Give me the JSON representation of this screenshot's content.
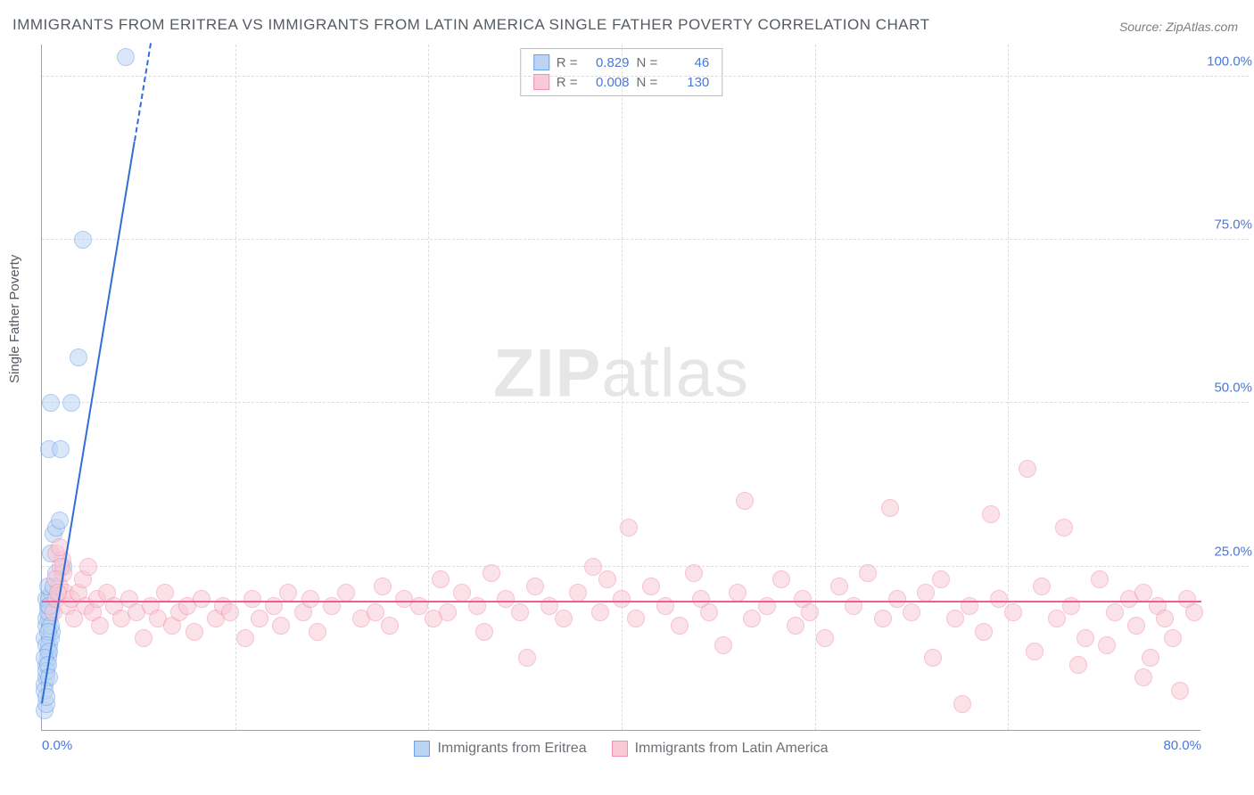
{
  "title": "IMMIGRANTS FROM ERITREA VS IMMIGRANTS FROM LATIN AMERICA SINGLE FATHER POVERTY CORRELATION CHART",
  "source": "Source: ZipAtlas.com",
  "y_axis_label": "Single Father Poverty",
  "watermark": {
    "bold": "ZIP",
    "rest": "atlas"
  },
  "chart": {
    "type": "scatter",
    "xlim": [
      0,
      80
    ],
    "ylim": [
      0,
      105
    ],
    "x_ticks": [
      0,
      13.33,
      26.67,
      40,
      53.33,
      66.67,
      80
    ],
    "x_tick_labels": [
      "0.0%",
      "",
      "",
      "",
      "",
      "",
      "80.0%"
    ],
    "y_ticks": [
      25,
      50,
      75,
      100
    ],
    "y_tick_labels": [
      "25.0%",
      "50.0%",
      "75.0%",
      "100.0%"
    ],
    "background_color": "#ffffff",
    "grid_color": "#d9dce0",
    "axis_color": "#9aa0a6",
    "tick_label_color": "#4978d6",
    "marker_radius": 10,
    "marker_stroke_width": 1.5,
    "series": [
      {
        "name": "Immigrants from Eritrea",
        "fill": "#bcd4f4",
        "stroke": "#6ea2e8",
        "fill_opacity": 0.55,
        "R": "0.829",
        "N": "46",
        "trend": {
          "x1": 0,
          "y1": 4,
          "x2": 7.5,
          "y2": 105,
          "color": "#2f6fd6",
          "width": 2,
          "dash_after_y": 90
        },
        "points": [
          [
            0.2,
            3
          ],
          [
            0.3,
            4
          ],
          [
            0.2,
            7
          ],
          [
            0.3,
            8
          ],
          [
            0.4,
            12
          ],
          [
            0.2,
            14
          ],
          [
            0.3,
            16
          ],
          [
            0.5,
            17
          ],
          [
            0.6,
            18
          ],
          [
            0.4,
            19
          ],
          [
            0.3,
            20
          ],
          [
            0.5,
            20
          ],
          [
            0.7,
            21
          ],
          [
            0.4,
            22
          ],
          [
            0.8,
            22
          ],
          [
            1.0,
            24
          ],
          [
            1.5,
            25
          ],
          [
            0.6,
            27
          ],
          [
            0.8,
            30
          ],
          [
            1.0,
            31
          ],
          [
            1.2,
            32
          ],
          [
            0.5,
            43
          ],
          [
            1.3,
            43
          ],
          [
            0.6,
            50
          ],
          [
            2.0,
            50
          ],
          [
            2.5,
            57
          ],
          [
            2.8,
            75
          ],
          [
            5.8,
            103
          ],
          [
            0.3,
            10
          ],
          [
            0.4,
            11
          ],
          [
            0.5,
            13
          ],
          [
            0.6,
            14
          ],
          [
            0.7,
            15
          ],
          [
            0.3,
            17
          ],
          [
            0.4,
            18
          ],
          [
            0.5,
            19
          ],
          [
            0.6,
            16
          ],
          [
            0.4,
            15
          ],
          [
            0.3,
            13
          ],
          [
            0.5,
            12
          ],
          [
            0.2,
            11
          ],
          [
            0.3,
            9
          ],
          [
            0.4,
            10
          ],
          [
            0.5,
            8
          ],
          [
            0.2,
            6
          ],
          [
            0.3,
            5
          ]
        ]
      },
      {
        "name": "Immigrants from Latin America",
        "fill": "#f8c9d6",
        "stroke": "#f191af",
        "fill_opacity": 0.55,
        "R": "0.008",
        "N": "130",
        "trend": {
          "x1": 0,
          "y1": 19.5,
          "x2": 80,
          "y2": 19.5,
          "color": "#ef5e93",
          "width": 2
        },
        "points": [
          [
            0.8,
            18
          ],
          [
            1.0,
            20
          ],
          [
            1.2,
            22
          ],
          [
            1.4,
            26
          ],
          [
            1.5,
            24
          ],
          [
            1.6,
            21
          ],
          [
            1.8,
            19
          ],
          [
            2.0,
            20
          ],
          [
            2.2,
            17
          ],
          [
            2.5,
            21
          ],
          [
            2.8,
            23
          ],
          [
            3.0,
            19
          ],
          [
            3.2,
            25
          ],
          [
            3.5,
            18
          ],
          [
            3.8,
            20
          ],
          [
            4.0,
            16
          ],
          [
            4.5,
            21
          ],
          [
            5.0,
            19
          ],
          [
            5.5,
            17
          ],
          [
            6.0,
            20
          ],
          [
            6.5,
            18
          ],
          [
            7.0,
            14
          ],
          [
            7.5,
            19
          ],
          [
            8.0,
            17
          ],
          [
            8.5,
            21
          ],
          [
            9.0,
            16
          ],
          [
            9.5,
            18
          ],
          [
            10,
            19
          ],
          [
            10.5,
            15
          ],
          [
            11,
            20
          ],
          [
            12,
            17
          ],
          [
            12.5,
            19
          ],
          [
            13,
            18
          ],
          [
            14,
            14
          ],
          [
            14.5,
            20
          ],
          [
            15,
            17
          ],
          [
            16,
            19
          ],
          [
            16.5,
            16
          ],
          [
            17,
            21
          ],
          [
            18,
            18
          ],
          [
            18.5,
            20
          ],
          [
            19,
            15
          ],
          [
            20,
            19
          ],
          [
            21,
            21
          ],
          [
            22,
            17
          ],
          [
            23,
            18
          ],
          [
            23.5,
            22
          ],
          [
            24,
            16
          ],
          [
            25,
            20
          ],
          [
            26,
            19
          ],
          [
            27,
            17
          ],
          [
            27.5,
            23
          ],
          [
            28,
            18
          ],
          [
            29,
            21
          ],
          [
            30,
            19
          ],
          [
            30.5,
            15
          ],
          [
            31,
            24
          ],
          [
            32,
            20
          ],
          [
            33,
            18
          ],
          [
            33.5,
            11
          ],
          [
            34,
            22
          ],
          [
            35,
            19
          ],
          [
            36,
            17
          ],
          [
            37,
            21
          ],
          [
            38,
            25
          ],
          [
            38.5,
            18
          ],
          [
            39,
            23
          ],
          [
            40,
            20
          ],
          [
            40.5,
            31
          ],
          [
            41,
            17
          ],
          [
            42,
            22
          ],
          [
            43,
            19
          ],
          [
            44,
            16
          ],
          [
            45,
            24
          ],
          [
            45.5,
            20
          ],
          [
            46,
            18
          ],
          [
            47,
            13
          ],
          [
            48,
            21
          ],
          [
            48.5,
            35
          ],
          [
            49,
            17
          ],
          [
            50,
            19
          ],
          [
            51,
            23
          ],
          [
            52,
            16
          ],
          [
            52.5,
            20
          ],
          [
            53,
            18
          ],
          [
            54,
            14
          ],
          [
            55,
            22
          ],
          [
            56,
            19
          ],
          [
            57,
            24
          ],
          [
            58,
            17
          ],
          [
            58.5,
            34
          ],
          [
            59,
            20
          ],
          [
            60,
            18
          ],
          [
            61,
            21
          ],
          [
            61.5,
            11
          ],
          [
            62,
            23
          ],
          [
            63,
            17
          ],
          [
            64,
            19
          ],
          [
            65,
            15
          ],
          [
            65.5,
            33
          ],
          [
            66,
            20
          ],
          [
            67,
            18
          ],
          [
            68,
            40
          ],
          [
            69,
            22
          ],
          [
            70,
            17
          ],
          [
            70.5,
            31
          ],
          [
            71,
            19
          ],
          [
            72,
            14
          ],
          [
            73,
            23
          ],
          [
            74,
            18
          ],
          [
            75,
            20
          ],
          [
            75.5,
            16
          ],
          [
            76,
            8
          ],
          [
            76.5,
            11
          ],
          [
            77,
            19
          ],
          [
            77.5,
            17
          ],
          [
            78,
            14
          ],
          [
            78.5,
            6
          ],
          [
            79,
            20
          ],
          [
            79.5,
            18
          ],
          [
            63.5,
            4
          ],
          [
            68.5,
            12
          ],
          [
            71.5,
            10
          ],
          [
            73.5,
            13
          ],
          [
            76,
            21
          ],
          [
            1.0,
            27
          ],
          [
            1.2,
            28
          ],
          [
            1.3,
            25
          ],
          [
            0.9,
            23
          ],
          [
            1.1,
            21
          ]
        ]
      }
    ],
    "legend_top": {
      "R_label": "R =",
      "N_label": "N ="
    },
    "legend_bottom": [
      {
        "label": "Immigrants from Eritrea",
        "fill": "#bcd4f4",
        "stroke": "#6ea2e8"
      },
      {
        "label": "Immigrants from Latin America",
        "fill": "#f8c9d6",
        "stroke": "#f191af"
      }
    ]
  }
}
